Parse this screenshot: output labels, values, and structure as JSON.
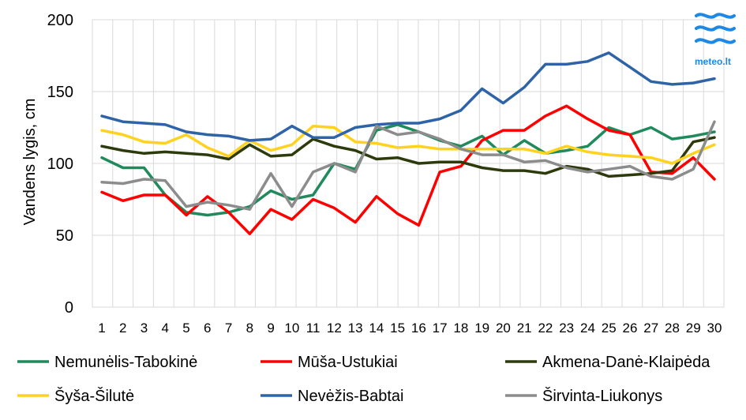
{
  "chart_data": {
    "type": "line",
    "ylabel": "Vandens lygis, cm",
    "xlabel": "",
    "title": "",
    "ylim": [
      0,
      200
    ],
    "yticks": [
      0,
      50,
      100,
      150,
      200
    ],
    "x": [
      1,
      2,
      3,
      4,
      5,
      6,
      7,
      8,
      9,
      10,
      11,
      12,
      13,
      14,
      15,
      16,
      17,
      18,
      19,
      20,
      21,
      22,
      23,
      24,
      25,
      26,
      27,
      28,
      29,
      30
    ],
    "grid": "vertical and horizontal",
    "legend_position": "bottom",
    "series": [
      {
        "name": "Nemunėlis-Tabokinė",
        "color": "#1f8a5b",
        "values": [
          104,
          97,
          97,
          78,
          66,
          64,
          66,
          70,
          81,
          75,
          78,
          100,
          96,
          123,
          127,
          122,
          116,
          112,
          119,
          106,
          116,
          107,
          109,
          112,
          125,
          120,
          125,
          117,
          119,
          122
        ]
      },
      {
        "name": "Mūša-Ustukiai",
        "color": "#ff0000",
        "values": [
          80,
          74,
          78,
          78,
          64,
          77,
          66,
          51,
          68,
          61,
          75,
          69,
          59,
          77,
          65,
          57,
          94,
          98,
          116,
          123,
          123,
          133,
          140,
          131,
          123,
          120,
          94,
          93,
          104,
          89
        ]
      },
      {
        "name": "Akmena-Danė-Klaipėda",
        "color": "#2d3a0c",
        "values": [
          112,
          109,
          107,
          108,
          107,
          106,
          103,
          113,
          105,
          106,
          117,
          112,
          109,
          103,
          104,
          100,
          101,
          101,
          97,
          95,
          95,
          93,
          98,
          96,
          91,
          92,
          93,
          95,
          115,
          118
        ]
      },
      {
        "name": "Šyša-Šilutė",
        "color": "#ffd21f",
        "values": [
          123,
          120,
          115,
          114,
          120,
          111,
          105,
          116,
          109,
          113,
          126,
          125,
          115,
          114,
          111,
          112,
          110,
          110,
          110,
          110,
          110,
          107,
          112,
          108,
          106,
          105,
          104,
          100,
          107,
          113
        ]
      },
      {
        "name": "Nevėžis-Babtai",
        "color": "#2e63a7",
        "values": [
          133,
          129,
          128,
          127,
          122,
          120,
          119,
          116,
          117,
          126,
          118,
          118,
          125,
          127,
          128,
          128,
          131,
          137,
          152,
          142,
          153,
          169,
          169,
          171,
          177,
          167,
          157,
          155,
          156,
          159
        ]
      },
      {
        "name": "Širvinta-Liukonys",
        "color": "#8c8c8c",
        "values": [
          87,
          86,
          89,
          88,
          70,
          73,
          71,
          68,
          93,
          70,
          94,
          100,
          94,
          126,
          120,
          122,
          117,
          110,
          106,
          106,
          101,
          102,
          97,
          94,
          96,
          98,
          91,
          89,
          96,
          129
        ]
      }
    ]
  },
  "logo": {
    "text": "meteo.lt",
    "icon": "meteo-waves-logo",
    "color": "#1e88e5"
  }
}
